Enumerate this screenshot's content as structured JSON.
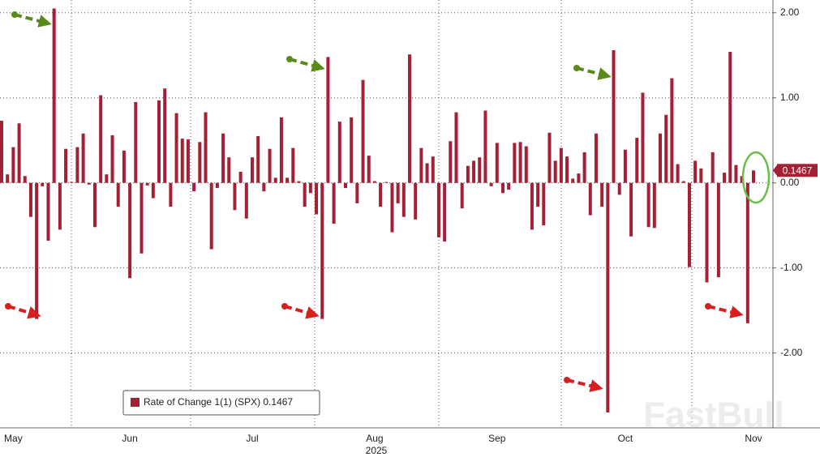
{
  "chart_data": {
    "type": "bar",
    "categories": [
      null,
      null,
      "May",
      null,
      null,
      null,
      null,
      null,
      null,
      null,
      null,
      null,
      null,
      null,
      null,
      null,
      null,
      null,
      null,
      null,
      null,
      null,
      "Jun",
      null,
      null,
      null,
      null,
      null,
      null,
      null,
      null,
      null,
      null,
      null,
      null,
      null,
      null,
      null,
      null,
      null,
      null,
      null,
      null,
      "Jul",
      null,
      null,
      null,
      null,
      null,
      null,
      null,
      null,
      null,
      null,
      null,
      null,
      null,
      null,
      null,
      null,
      null,
      null,
      null,
      null,
      "Aug",
      null,
      null,
      null,
      null,
      null,
      null,
      null,
      null,
      null,
      null,
      null,
      null,
      null,
      null,
      null,
      null,
      null,
      null,
      null,
      null,
      "Sep",
      null,
      null,
      null,
      null,
      null,
      null,
      null,
      null,
      null,
      null,
      null,
      null,
      null,
      null,
      null,
      null,
      null,
      null,
      null,
      null,
      null,
      "Oct",
      null,
      null,
      null,
      null,
      null,
      null,
      null,
      null,
      null,
      null,
      null,
      null,
      null,
      null,
      null,
      null,
      null,
      null,
      null,
      null,
      null,
      "Nov"
    ],
    "series": [
      {
        "name": "Rate of Change 1(1) (SPX) 0.1467",
        "color": "#a32035",
        "values": [
          0.73,
          0.1,
          0.42,
          0.7,
          0.08,
          -0.4,
          -1.6,
          -0.04,
          -0.68,
          2.05,
          -0.55,
          0.4,
          0.01,
          0.42,
          0.58,
          -0.02,
          -0.52,
          1.03,
          0.1,
          0.56,
          -0.28,
          0.38,
          -1.12,
          0.95,
          -0.83,
          -0.03,
          -0.18,
          0.97,
          1.11,
          -0.28,
          0.82,
          0.52,
          0.51,
          -0.1,
          0.48,
          0.83,
          -0.78,
          -0.06,
          0.58,
          0.3,
          -0.32,
          0.13,
          -0.42,
          0.3,
          0.55,
          -0.1,
          0.4,
          0.06,
          0.77,
          0.06,
          0.41,
          0.02,
          -0.28,
          -0.12,
          -0.37,
          -1.6,
          1.48,
          -0.48,
          0.72,
          -0.06,
          0.77,
          -0.24,
          1.21,
          0.32,
          0.02,
          -0.28,
          0.01,
          -0.58,
          -0.24,
          -0.4,
          1.51,
          -0.43,
          0.41,
          0.23,
          0.31,
          -0.64,
          -0.69,
          0.49,
          0.83,
          -0.3,
          0.2,
          0.26,
          0.3,
          0.85,
          -0.04,
          0.47,
          -0.12,
          -0.08,
          0.47,
          0.48,
          0.43,
          -0.55,
          -0.28,
          -0.5,
          0.59,
          0.26,
          0.41,
          0.31,
          0.05,
          0.11,
          0.36,
          -0.38,
          0.58,
          -0.28,
          -2.7,
          1.56,
          -0.14,
          0.39,
          -0.63,
          0.53,
          1.06,
          -0.52,
          -0.53,
          0.58,
          0.8,
          1.23,
          0.22,
          0.02,
          -0.99,
          0.26,
          0.17,
          -1.17,
          0.36,
          -1.11,
          0.12,
          1.54,
          0.21,
          0.08,
          -1.65,
          0.1467
        ]
      }
    ],
    "year_label": "2025",
    "watermark": "FastBull",
    "ylim": [
      -2.88,
      2.15
    ],
    "yticks": [
      {
        "value": 2,
        "label": "2.00"
      },
      {
        "value": 1,
        "label": "1.00"
      },
      {
        "value": 0,
        "label": "0.00"
      },
      {
        "value": -1,
        "label": "-1.00"
      },
      {
        "value": -2,
        "label": "-2.00"
      }
    ],
    "grid": true,
    "legend": "bottom-left"
  }
}
